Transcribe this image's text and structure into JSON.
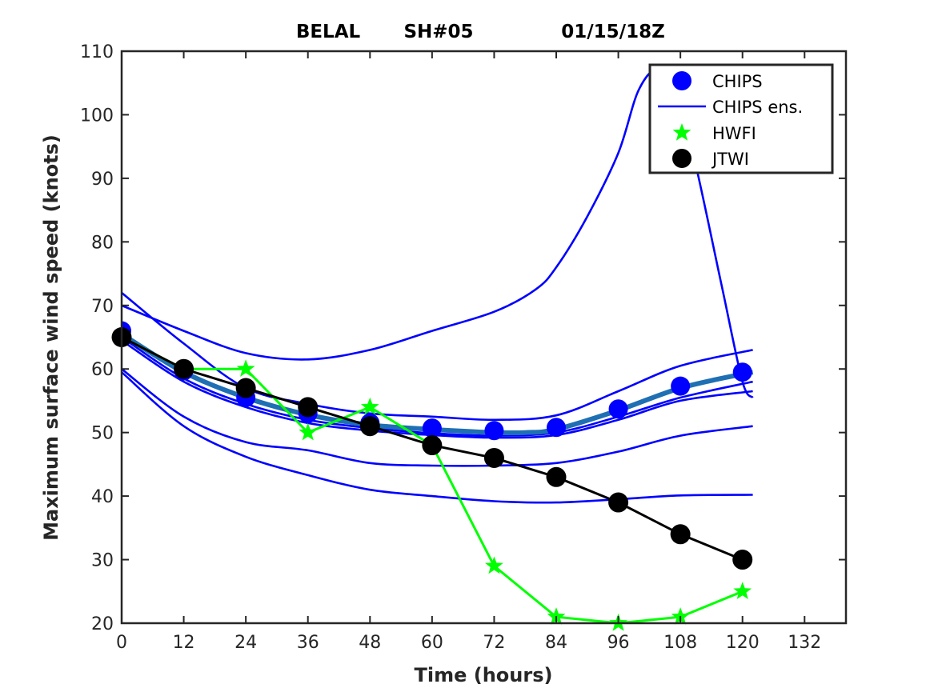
{
  "chart_data": {
    "type": "line",
    "title_parts": [
      "BELAL",
      "SH#05",
      "01/15/18Z"
    ],
    "xlabel": "Time (hours)",
    "ylabel": "Maximum surface wind speed (knots)",
    "xlim": [
      0,
      140
    ],
    "ylim": [
      20,
      110
    ],
    "xticks": [
      0,
      12,
      24,
      36,
      48,
      60,
      72,
      84,
      96,
      108,
      120,
      132
    ],
    "yticks": [
      20,
      30,
      40,
      50,
      60,
      70,
      80,
      90,
      100,
      110
    ],
    "legend": {
      "position": "top-right",
      "entries": [
        "CHIPS",
        "CHIPS ens.",
        "HWFI",
        "JTWI"
      ]
    },
    "colors": {
      "chips": "#0000ff",
      "chips_mean": "#1f6fb4",
      "hwfi": "#00ff00",
      "jtwi": "#000000"
    },
    "series": [
      {
        "name": "CHIPS",
        "kind": "markers",
        "x": [
          0,
          12,
          24,
          36,
          48,
          60,
          72,
          84,
          96,
          108,
          120
        ],
        "y": [
          66,
          59.7,
          55.5,
          53,
          51.5,
          50.7,
          50.3,
          50.8,
          53.7,
          57.3,
          59.5
        ]
      },
      {
        "name": "CHIPS mean",
        "kind": "thick-line",
        "x": [
          0,
          12,
          24,
          36,
          48,
          60,
          72,
          78,
          84,
          96,
          108,
          120,
          122
        ],
        "y": [
          65.5,
          59.5,
          55.5,
          52.8,
          51.2,
          50.5,
          50,
          50,
          50.5,
          53.5,
          57,
          59.2,
          59.5
        ]
      },
      {
        "name": "CHIPS ens.",
        "kind": "ensemble",
        "members": [
          {
            "x": [
              0,
              12,
              24,
              36,
              48,
              60,
              72,
              80,
              84,
              90,
              96,
              100,
              104,
              108,
              111,
              116,
              120,
              122
            ],
            "y": [
              70,
              66,
              62.5,
              61.5,
              63,
              66,
              69,
              72.5,
              76,
              84,
              94,
              104,
              107,
              101,
              92,
              73,
              58,
              55.5
            ]
          },
          {
            "x": [
              0,
              12,
              24,
              36,
              48,
              60,
              72,
              84,
              96,
              108,
              122
            ],
            "y": [
              72,
              64,
              57,
              54.5,
              53,
              52.5,
              52,
              52.7,
              56.5,
              60.5,
              63
            ]
          },
          {
            "x": [
              0,
              12,
              24,
              36,
              48,
              60,
              72,
              84,
              96,
              108,
              122
            ],
            "y": [
              65,
              58.5,
              54.5,
              52,
              50.7,
              49.9,
              49.5,
              50,
              52.5,
              55.5,
              58
            ]
          },
          {
            "x": [
              0,
              12,
              24,
              36,
              48,
              60,
              72,
              84,
              96,
              108,
              122
            ],
            "y": [
              64.5,
              58,
              54,
              51.5,
              50.3,
              49.6,
              49.2,
              49.6,
              52,
              55,
              56.5
            ]
          },
          {
            "x": [
              0,
              12,
              24,
              36,
              48,
              60,
              72,
              84,
              96,
              108,
              122
            ],
            "y": [
              60,
              52.5,
              48.5,
              47.2,
              45.2,
              44.8,
              44.8,
              45.2,
              47,
              49.5,
              51
            ]
          },
          {
            "x": [
              0,
              12,
              24,
              36,
              48,
              60,
              72,
              84,
              96,
              108,
              122
            ],
            "y": [
              59.5,
              51,
              46.2,
              43.3,
              41,
              40,
              39.2,
              39,
              39.5,
              40.1,
              40.2
            ]
          }
        ]
      },
      {
        "name": "HWFI",
        "kind": "star-line",
        "x": [
          0,
          12,
          24,
          36,
          48,
          60,
          72,
          84,
          96,
          108,
          120
        ],
        "y": [
          65,
          60,
          60,
          50,
          54,
          48,
          29,
          21,
          20,
          21,
          25
        ]
      },
      {
        "name": "JTWI",
        "kind": "marker-line",
        "x": [
          0,
          12,
          24,
          36,
          48,
          60,
          72,
          84,
          96,
          108,
          120
        ],
        "y": [
          65,
          60,
          57,
          54,
          51,
          48,
          46,
          43,
          39,
          34,
          30
        ]
      }
    ]
  }
}
